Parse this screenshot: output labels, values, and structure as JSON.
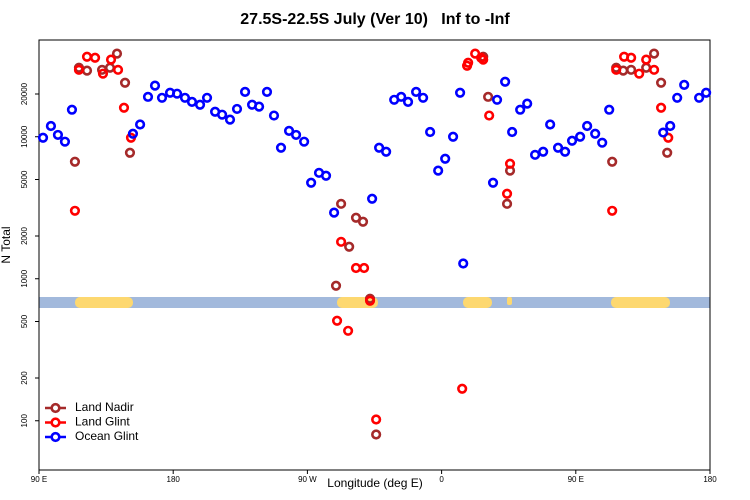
{
  "chart_data": {
    "type": "scatter",
    "title": "27.5S-22.5S July (Ver 10)   Inf to -Inf",
    "xlabel": "Longitude (deg E)",
    "ylabel": "N Total",
    "ylog": true,
    "legend": "bottom-left",
    "xlim": [
      90,
      540
    ],
    "xticks": [
      {
        "value": 90,
        "label": "90 E"
      },
      180,
      {
        "value": 270,
        "label": "90 W"
      },
      {
        "value": 360,
        "label": "0"
      },
      {
        "value": 450,
        "label": "90 E"
      },
      {
        "value": 540,
        "label": "180"
      }
    ],
    "ylim": [
      45,
      48000
    ],
    "yticks": [
      100,
      200,
      500,
      1000,
      2000,
      5000,
      10000,
      20000
    ],
    "series": [
      {
        "name": "Land Nadir",
        "color": "#a52a2a",
        "x": [
          114.1,
          116.8,
          122.2,
          132.3,
          137.6,
          142.3,
          147.7,
          151,
          289.2,
          292.6,
          298,
          302.6,
          307.3,
          312,
          316.1,
          387.9,
          391.2,
          403.9,
          405.9,
          474.4,
          477.1,
          481.8,
          487.1,
          497.2,
          502.5,
          507.2,
          511.3
        ],
        "values": [
          6670,
          30600,
          29200,
          29600,
          30600,
          38500,
          24000,
          7710,
          893,
          3370,
          1680,
          2690,
          2520,
          723,
          80,
          36600,
          19100,
          3370,
          5770,
          6670,
          30600,
          29200,
          29600,
          30600,
          38500,
          24000,
          7710
        ]
      },
      {
        "name": "Land Glint",
        "color": "#ff0000",
        "x": [
          114.1,
          116.8,
          122.2,
          127.6,
          132.9,
          138.3,
          143,
          147,
          151.7,
          289.9,
          292.6,
          297.3,
          302.6,
          308,
          312,
          316.1,
          373.8,
          377.1,
          377.8,
          382.5,
          386.5,
          387.9,
          391.9,
          403.9,
          405.9,
          474.4,
          477.1,
          482.4,
          487.1,
          492.5,
          497.2,
          502.5,
          507.2,
          512
        ],
        "values": [
          3010,
          29600,
          36600,
          36000,
          27800,
          34900,
          29600,
          16000,
          9840,
          506,
          1820,
          430,
          1190,
          1190,
          700,
          102,
          168,
          31600,
          33200,
          38500,
          36000,
          34900,
          14100,
          3970,
          6450,
          3010,
          29600,
          36600,
          36000,
          27800,
          34900,
          29600,
          16000,
          9840
        ]
      },
      {
        "name": "Ocean Glint",
        "color": "#0000ff",
        "x": [
          92.7,
          98,
          102.7,
          107.4,
          112.1,
          153,
          157.8,
          163.1,
          167.8,
          172.5,
          177.9,
          182.6,
          187.9,
          192.6,
          198,
          202.7,
          208.1,
          212.8,
          218.1,
          222.8,
          228.2,
          232.9,
          237.6,
          242.9,
          247.6,
          252.3,
          257.7,
          262.4,
          267.8,
          272.5,
          277.8,
          282.5,
          287.9,
          313.4,
          318.1,
          322.8,
          328.2,
          332.9,
          337.5,
          342.9,
          347.6,
          352.3,
          357.7,
          362.4,
          367.7,
          372.4,
          374.5,
          394.5,
          397.2,
          402.6,
          407.3,
          412.7,
          417.4,
          422.7,
          428.1,
          432.8,
          438.1,
          442.8,
          447.5,
          452.9,
          457.6,
          463,
          467.7,
          472.4,
          508.6,
          513.3,
          518,
          522.7,
          532.7,
          537.4
        ],
        "values": [
          9840,
          11900,
          10300,
          9230,
          15500,
          10500,
          12200,
          19100,
          22900,
          18800,
          20400,
          20100,
          18800,
          17600,
          16800,
          18800,
          15000,
          14300,
          13200,
          15700,
          20700,
          16800,
          16300,
          20700,
          14100,
          8370,
          11000,
          10300,
          9230,
          4740,
          5570,
          5310,
          2920,
          3660,
          8370,
          7840,
          18200,
          19100,
          17600,
          20700,
          18800,
          10800,
          5770,
          7000,
          10000,
          20400,
          1280,
          4740,
          18200,
          24400,
          10800,
          15500,
          17100,
          7460,
          7840,
          12200,
          8370,
          7840,
          9370,
          10000,
          11900,
          10500,
          9080,
          15500,
          10700,
          11900,
          18800,
          23200,
          18800,
          20400
        ]
      }
    ]
  }
}
